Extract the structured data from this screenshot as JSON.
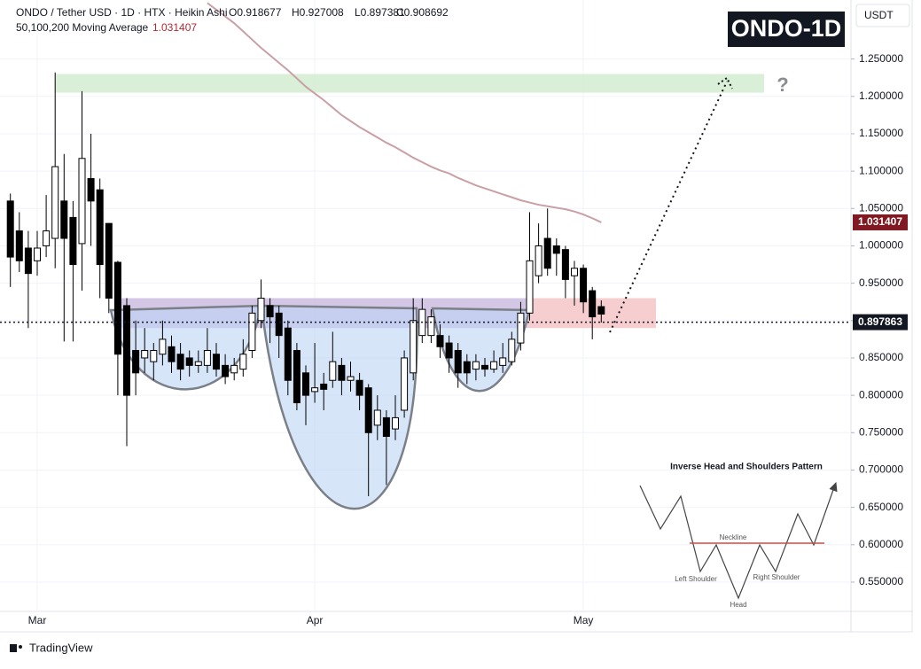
{
  "chart_data": {
    "type": "candlestick",
    "title": "ONDO / Tether USD · 1D · HTX · Heikin Ashi",
    "ohlc_labels": [
      "O0.918677",
      "H0.927008",
      "L0.897381",
      "C0.908692"
    ],
    "badge": "ONDO-1D",
    "currency": "USDT",
    "watermark": "TradingView",
    "categories": [
      null,
      null,
      null,
      "Mar",
      null,
      null,
      null,
      null,
      null,
      null,
      null,
      null,
      null,
      null,
      null,
      null,
      null,
      null,
      null,
      null,
      null,
      null,
      null,
      null,
      null,
      null,
      null,
      null,
      null,
      null,
      null,
      null,
      null,
      null,
      "Apr",
      null,
      null,
      null,
      null,
      null,
      null,
      null,
      null,
      null,
      null,
      null,
      null,
      null,
      null,
      null,
      null,
      null,
      null,
      null,
      null,
      null,
      null,
      null,
      null,
      null,
      null,
      null,
      null,
      null,
      "May",
      null,
      null
    ],
    "candles": {
      "open": [
        1.06,
        1.02,
        0.997,
        0.98,
        1.0,
        1.01,
        1.06,
        1.038,
        1.003,
        1.09,
        1.075,
        1.03,
        0.978,
        0.92,
        0.86,
        0.85,
        0.845,
        0.855,
        0.865,
        0.855,
        0.85,
        0.84,
        0.84,
        0.855,
        0.84,
        0.83,
        0.835,
        0.86,
        0.9,
        0.92,
        0.91,
        0.89,
        0.86,
        0.83,
        0.805,
        0.815,
        0.82,
        0.84,
        0.82,
        0.82,
        0.81,
        0.76,
        0.77,
        0.755,
        0.78,
        0.83,
        0.88,
        0.88,
        0.88,
        0.87,
        0.86,
        0.845,
        0.835,
        0.84,
        0.835,
        0.84,
        0.845,
        0.87,
        0.91,
        0.96,
        1.01,
        1.0,
        0.995,
        0.96,
        0.97,
        0.94,
        0.918677
      ],
      "high": [
        1.07,
        1.045,
        1.02,
        1.02,
        1.068,
        1.232,
        1.123,
        1.06,
        1.207,
        1.15,
        1.09,
        1.03,
        0.98,
        0.93,
        0.9,
        0.89,
        0.87,
        0.9,
        0.88,
        0.87,
        0.86,
        0.86,
        0.89,
        0.87,
        0.855,
        0.85,
        0.875,
        0.92,
        0.955,
        0.93,
        0.92,
        0.9,
        0.87,
        0.84,
        0.87,
        0.83,
        0.885,
        0.85,
        0.845,
        0.83,
        0.815,
        0.8,
        0.78,
        0.8,
        0.86,
        0.93,
        0.93,
        0.915,
        0.895,
        0.88,
        0.87,
        0.855,
        0.855,
        0.85,
        0.86,
        0.87,
        0.885,
        0.925,
        1.045,
        1.03,
        1.05,
        1.01,
        1.0,
        0.98,
        0.975,
        0.945,
        0.927008
      ],
      "low": [
        0.945,
        0.965,
        0.89,
        0.96,
        0.985,
        0.97,
        0.872,
        0.872,
        0.94,
        1.0,
        0.93,
        0.91,
        0.8,
        0.732,
        0.8,
        0.83,
        0.82,
        0.84,
        0.83,
        0.82,
        0.825,
        0.83,
        0.83,
        0.825,
        0.815,
        0.82,
        0.825,
        0.85,
        0.89,
        0.87,
        0.85,
        0.8,
        0.78,
        0.76,
        0.79,
        0.78,
        0.81,
        0.8,
        0.805,
        0.78,
        0.665,
        0.74,
        0.68,
        0.74,
        0.77,
        0.82,
        0.87,
        0.87,
        0.85,
        0.83,
        0.81,
        0.815,
        0.82,
        0.825,
        0.83,
        0.83,
        0.84,
        0.86,
        0.9,
        0.95,
        0.96,
        0.96,
        0.93,
        0.92,
        0.91,
        0.875,
        0.897381
      ],
      "close": [
        0.985,
        0.98,
        0.963,
        0.997,
        1.02,
        1.106,
        1.01,
        0.975,
        1.117,
        1.06,
        0.975,
        0.93,
        0.855,
        0.8,
        0.83,
        0.86,
        0.86,
        0.875,
        0.845,
        0.835,
        0.84,
        0.845,
        0.86,
        0.835,
        0.825,
        0.84,
        0.855,
        0.91,
        0.93,
        0.905,
        0.88,
        0.82,
        0.79,
        0.8,
        0.81,
        0.808,
        0.845,
        0.82,
        0.825,
        0.8,
        0.75,
        0.78,
        0.745,
        0.77,
        0.85,
        0.9,
        0.915,
        0.905,
        0.865,
        0.85,
        0.83,
        0.83,
        0.845,
        0.835,
        0.845,
        0.85,
        0.875,
        0.91,
        0.98,
        1.0,
        0.97,
        0.99,
        0.955,
        0.97,
        0.925,
        0.905,
        0.908692
      ],
      "up_color": "#ffffff",
      "down_color": "#000000"
    },
    "ma": {
      "name": "50,100,200 Moving Average",
      "color": "#c9a0a6",
      "values": [
        null,
        null,
        null,
        null,
        null,
        null,
        null,
        null,
        null,
        null,
        null,
        null,
        null,
        null,
        null,
        null,
        null,
        null,
        null,
        null,
        null,
        null,
        1.325,
        1.316,
        1.307,
        1.298,
        1.287,
        1.276,
        1.265,
        1.255,
        1.245,
        1.235,
        1.224,
        1.213,
        1.204,
        1.195,
        1.185,
        1.175,
        1.167,
        1.159,
        1.152,
        1.145,
        1.138,
        1.132,
        1.125,
        1.118,
        1.112,
        1.106,
        1.101,
        1.097,
        1.091,
        1.086,
        1.081,
        1.077,
        1.073,
        1.069,
        1.065,
        1.061,
        1.058,
        1.055,
        1.053,
        1.051,
        1.049,
        1.046,
        1.042,
        1.037,
        1.031407
      ]
    },
    "price_line": 0.897863,
    "zones": [
      {
        "range": [
          1.205,
          1.23
        ],
        "color": "#d3ecd0"
      },
      {
        "range": [
          0.89,
          0.93
        ],
        "color": "#cdbde0"
      },
      {
        "range": [
          0.89,
          0.93
        ],
        "color": "#f6c6c8"
      }
    ],
    "target_mark": "?",
    "ylim": [
      0.5108,
      1.329
    ],
    "yticks": [
      {
        "value": 0.55,
        "label": "0.550000"
      },
      {
        "value": 0.6,
        "label": "0.600000"
      },
      {
        "value": 0.65,
        "label": "0.650000"
      },
      {
        "value": 0.7,
        "label": "0.700000"
      },
      {
        "value": 0.75,
        "label": "0.750000"
      },
      {
        "value": 0.8,
        "label": "0.800000"
      },
      {
        "value": 0.85,
        "label": "0.850000"
      },
      {
        "value": 0.9,
        "label": "0.900000"
      },
      {
        "value": 0.95,
        "label": "0.950000"
      },
      {
        "value": 1.0,
        "label": "1.000000"
      },
      {
        "value": 1.05,
        "label": "1.050000"
      },
      {
        "value": 1.1,
        "label": "1.100000"
      },
      {
        "value": 1.15,
        "label": "1.150000"
      },
      {
        "value": 1.2,
        "label": "1.200000"
      },
      {
        "value": 1.25,
        "label": "1.250000"
      }
    ],
    "grid": true,
    "inset": {
      "title": "Inverse Head and Shoulders Pattern",
      "neckline": "Neckline",
      "left": "Left Shoulder",
      "head": "Head",
      "right": "Right Shoulder"
    }
  }
}
